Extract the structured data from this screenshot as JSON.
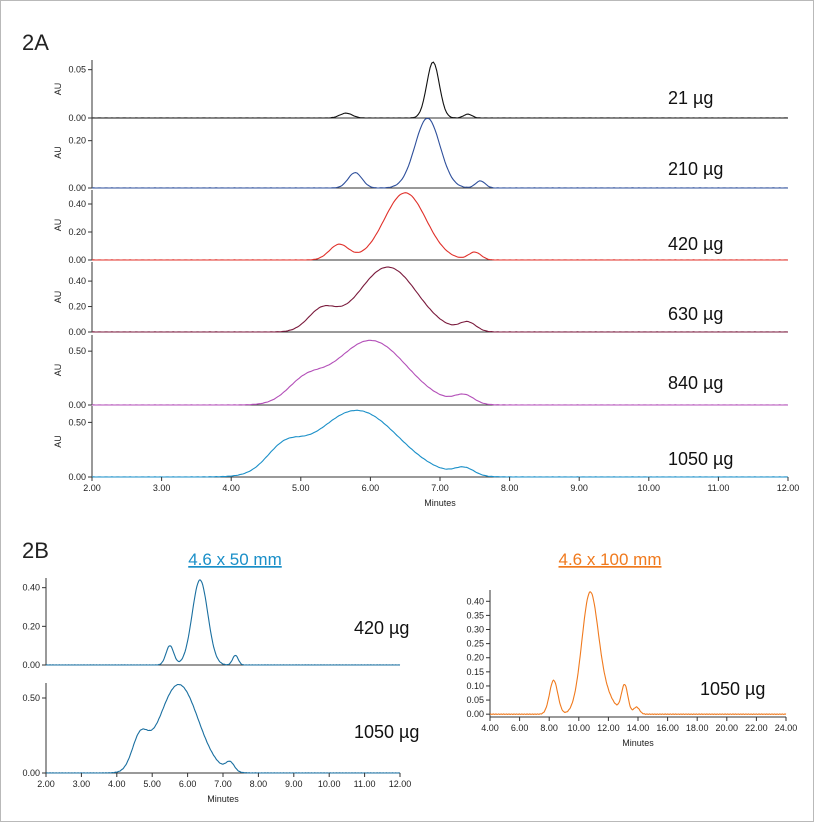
{
  "figure": {
    "panel_2a_label": "2A",
    "panel_2b_label": "2B",
    "colors": {
      "black": "#111111",
      "blue": "#2e4f9b",
      "red": "#e0302a",
      "maroon": "#7a1a3c",
      "purple": "#b34fb8",
      "cyan": "#1a8fc8",
      "teal": "#1a6fa0",
      "orange": "#f07a1e"
    }
  },
  "chart_data": [
    {
      "id": "2A",
      "type": "line",
      "xlabel": "Minutes",
      "xlim": [
        2.0,
        12.0
      ],
      "xticks": [
        "2.00",
        "3.00",
        "4.00",
        "5.00",
        "6.00",
        "7.00",
        "8.00",
        "9.00",
        "10.00",
        "11.00",
        "12.00"
      ],
      "ylabel": "AU",
      "stacked_panels": true,
      "series": [
        {
          "name": "21 µg",
          "color": "#111111",
          "ylim": [
            0,
            0.06
          ],
          "yticks": [
            "0.00",
            "0.05"
          ],
          "ytick_values": [
            0,
            0.05
          ],
          "peaks": [
            [
              5.65,
              0.005,
              0.09
            ],
            [
              6.9,
              0.058,
              0.09
            ],
            [
              7.4,
              0.004,
              0.06
            ]
          ]
        },
        {
          "name": "210 µg",
          "color": "#2e4f9b",
          "ylim": [
            0,
            0.3
          ],
          "yticks": [
            "0.00",
            "0.20"
          ],
          "ytick_values": [
            0,
            0.2
          ],
          "peaks": [
            [
              5.78,
              0.065,
              0.1
            ],
            [
              6.82,
              0.295,
              0.18
            ],
            [
              7.58,
              0.03,
              0.07
            ]
          ]
        },
        {
          "name": "420 µg",
          "color": "#e0302a",
          "ylim": [
            0,
            0.5
          ],
          "yticks": [
            "0.00",
            "0.20",
            "0.40"
          ],
          "ytick_values": [
            0,
            0.2,
            0.4
          ],
          "peaks": [
            [
              5.55,
              0.11,
              0.14
            ],
            [
              6.5,
              0.48,
              0.3
            ],
            [
              7.5,
              0.055,
              0.09
            ]
          ]
        },
        {
          "name": "630 µg",
          "color": "#7a1a3c",
          "ylim": [
            0,
            0.55
          ],
          "yticks": [
            "0.00",
            "0.20",
            "0.40"
          ],
          "ytick_values": [
            0,
            0.2,
            0.4
          ],
          "peaks": [
            [
              5.3,
              0.16,
              0.2
            ],
            [
              6.25,
              0.51,
              0.42
            ],
            [
              7.4,
              0.07,
              0.12
            ]
          ]
        },
        {
          "name": "840 µg",
          "color": "#b34fb8",
          "ylim": [
            0,
            0.65
          ],
          "yticks": [
            "0.00",
            "0.50"
          ],
          "ytick_values": [
            0,
            0.5
          ],
          "peaks": [
            [
              5.05,
              0.17,
              0.25
            ],
            [
              6.0,
              0.6,
              0.52
            ],
            [
              7.35,
              0.08,
              0.14
            ]
          ]
        },
        {
          "name": "1050 µg",
          "color": "#1a8fc8",
          "ylim": [
            0,
            0.65
          ],
          "yticks": [
            "0.00",
            "0.50"
          ],
          "ytick_values": [
            0,
            0.5
          ],
          "peaks": [
            [
              4.75,
              0.2,
              0.25
            ],
            [
              5.8,
              0.61,
              0.6
            ],
            [
              7.35,
              0.07,
              0.14
            ]
          ]
        }
      ]
    },
    {
      "id": "2B-left",
      "type": "line",
      "subtitle": "4.6 x 50 mm",
      "xlabel": "Minutes",
      "xlim": [
        2.0,
        12.0
      ],
      "xticks": [
        "2.00",
        "3.00",
        "4.00",
        "5.00",
        "6.00",
        "7.00",
        "8.00",
        "9.00",
        "10.00",
        "11.00",
        "12.00"
      ],
      "stacked_panels": true,
      "series": [
        {
          "name": "420 µg",
          "color": "#1a6fa0",
          "ylim": [
            0,
            0.45
          ],
          "yticks": [
            "0.00",
            "0.20",
            "0.40"
          ],
          "ytick_values": [
            0,
            0.2,
            0.4
          ],
          "peaks": [
            [
              5.5,
              0.1,
              0.11
            ],
            [
              6.35,
              0.44,
              0.22
            ],
            [
              7.35,
              0.05,
              0.08
            ]
          ]
        },
        {
          "name": "1050 µg",
          "color": "#1a6fa0",
          "ylim": [
            0,
            0.6
          ],
          "yticks": [
            "0.00",
            "0.50"
          ],
          "ytick_values": [
            0,
            0.5
          ],
          "peaks": [
            [
              4.65,
              0.2,
              0.22
            ],
            [
              5.75,
              0.59,
              0.55
            ],
            [
              7.2,
              0.06,
              0.12
            ]
          ]
        }
      ]
    },
    {
      "id": "2B-right",
      "type": "line",
      "subtitle": "4.6 x 100 mm",
      "xlabel": "Minutes",
      "xlim": [
        4.0,
        24.0
      ],
      "xticks": [
        "4.00",
        "6.00",
        "8.00",
        "10.00",
        "12.00",
        "14.00",
        "16.00",
        "18.00",
        "20.00",
        "22.00",
        "24.00"
      ],
      "ylim": [
        -0.01,
        0.44
      ],
      "yticks": [
        "0.00",
        "0.05",
        "0.10",
        "0.15",
        "0.20",
        "0.25",
        "0.30",
        "0.35",
        "0.40"
      ],
      "ytick_values": [
        0,
        0.05,
        0.1,
        0.15,
        0.2,
        0.25,
        0.3,
        0.35,
        0.4
      ],
      "series": [
        {
          "name": "1050 µg",
          "color": "#f07a1e",
          "peaks": [
            [
              8.3,
              0.12,
              0.28
            ],
            [
              10.75,
              0.42,
              0.55
            ],
            [
              11.8,
              0.06,
              0.6
            ],
            [
              13.1,
              0.1,
              0.22
            ],
            [
              13.9,
              0.025,
              0.2
            ]
          ]
        }
      ]
    }
  ]
}
